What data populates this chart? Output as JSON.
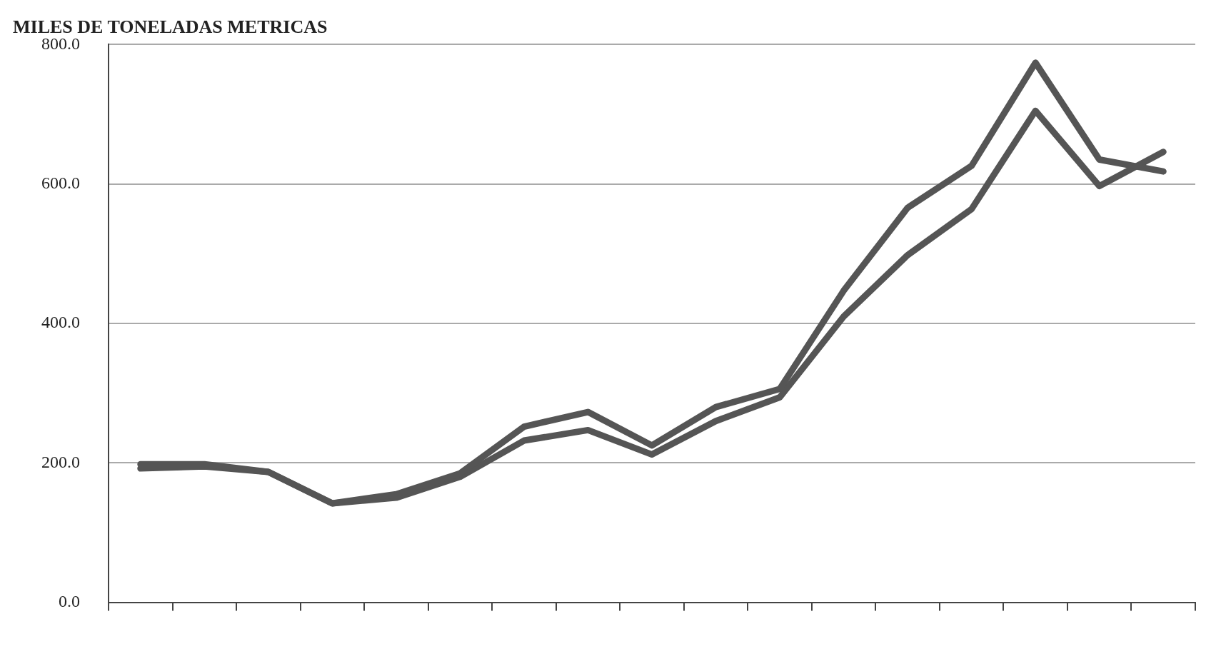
{
  "chart_data": {
    "type": "line",
    "ylabel": "MILES DE TONELADAS METRICAS",
    "categories": [
      null,
      null,
      null,
      null,
      null,
      null,
      null,
      null,
      null,
      null,
      null,
      null,
      null,
      null,
      null,
      null,
      null
    ],
    "series": [
      {
        "color": "#555555",
        "values": [
          198,
          198,
          187,
          142,
          155,
          185,
          252,
          273,
          225,
          280,
          306,
          447,
          566,
          626,
          774,
          635,
          618
        ]
      },
      {
        "color": "#555555",
        "values": [
          192,
          195,
          187,
          142,
          150,
          180,
          232,
          247,
          212,
          260,
          294,
          410,
          498,
          564,
          705,
          597,
          646
        ]
      }
    ],
    "ylim": [
      0,
      800
    ],
    "yticks": [
      {
        "value": 0,
        "label": "0.0"
      },
      {
        "value": 200,
        "label": "200.0"
      },
      {
        "value": 400,
        "label": "400.0"
      },
      {
        "value": 600,
        "label": "600.0"
      },
      {
        "value": 800,
        "label": "800.0"
      }
    ],
    "grid": "y",
    "tick_labels": "y",
    "legend": false,
    "marker": "none",
    "line_style": "solid"
  }
}
